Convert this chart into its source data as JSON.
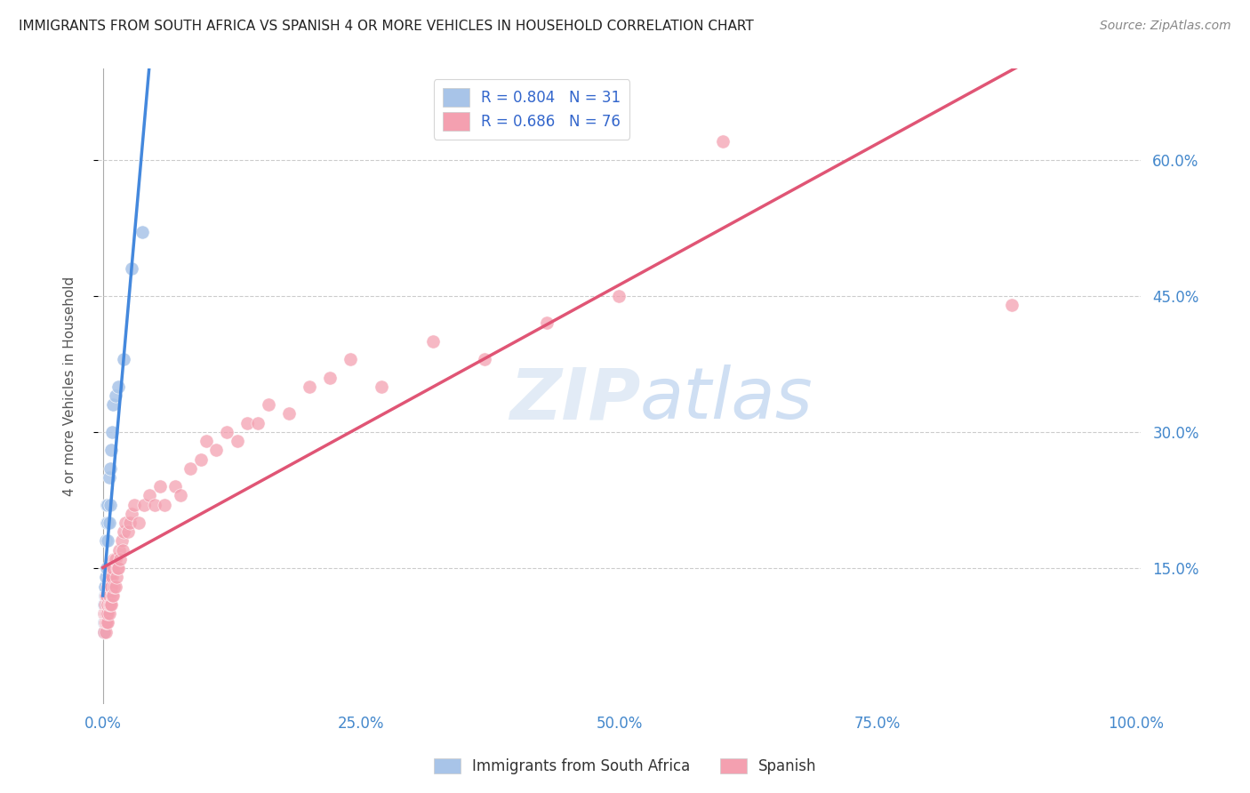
{
  "title": "IMMIGRANTS FROM SOUTH AFRICA VS SPANISH 4 OR MORE VEHICLES IN HOUSEHOLD CORRELATION CHART",
  "source": "Source: ZipAtlas.com",
  "ylabel": "4 or more Vehicles in Household",
  "ytick_labels": [
    "15.0%",
    "30.0%",
    "45.0%",
    "60.0%"
  ],
  "ytick_values": [
    0.15,
    0.3,
    0.45,
    0.6
  ],
  "watermark": "ZIPatlas",
  "legend_label1": "Immigrants from South Africa",
  "legend_label2": "Spanish",
  "R1": 0.804,
  "N1": 31,
  "R2": 0.686,
  "N2": 76,
  "color1": "#a8c4e8",
  "color2": "#f4a0b0",
  "line_color1": "#4488dd",
  "line_color2": "#e05575",
  "title_color": "#222222",
  "axis_label_color": "#4488cc",
  "legend_text_color": "#3366cc",
  "blue_x": [
    0.001,
    0.001,
    0.001,
    0.001,
    0.002,
    0.002,
    0.002,
    0.002,
    0.002,
    0.003,
    0.003,
    0.003,
    0.003,
    0.004,
    0.004,
    0.004,
    0.005,
    0.005,
    0.005,
    0.006,
    0.006,
    0.007,
    0.007,
    0.008,
    0.009,
    0.01,
    0.012,
    0.015,
    0.02,
    0.028,
    0.038
  ],
  "blue_y": [
    0.08,
    0.09,
    0.1,
    0.11,
    0.09,
    0.1,
    0.11,
    0.12,
    0.13,
    0.1,
    0.12,
    0.14,
    0.18,
    0.15,
    0.2,
    0.22,
    0.18,
    0.2,
    0.22,
    0.2,
    0.25,
    0.22,
    0.26,
    0.28,
    0.3,
    0.33,
    0.34,
    0.35,
    0.38,
    0.48,
    0.52
  ],
  "pink_x": [
    0.001,
    0.001,
    0.002,
    0.002,
    0.002,
    0.003,
    0.003,
    0.003,
    0.003,
    0.004,
    0.004,
    0.004,
    0.004,
    0.005,
    0.005,
    0.005,
    0.005,
    0.006,
    0.006,
    0.006,
    0.006,
    0.007,
    0.007,
    0.007,
    0.008,
    0.008,
    0.008,
    0.009,
    0.009,
    0.01,
    0.01,
    0.011,
    0.011,
    0.012,
    0.012,
    0.013,
    0.014,
    0.015,
    0.016,
    0.017,
    0.018,
    0.019,
    0.02,
    0.022,
    0.024,
    0.026,
    0.028,
    0.03,
    0.035,
    0.04,
    0.045,
    0.05,
    0.055,
    0.06,
    0.07,
    0.075,
    0.085,
    0.095,
    0.1,
    0.11,
    0.12,
    0.13,
    0.14,
    0.15,
    0.16,
    0.18,
    0.2,
    0.22,
    0.24,
    0.27,
    0.32,
    0.37,
    0.43,
    0.5,
    0.6,
    0.88
  ],
  "pink_y": [
    0.08,
    0.1,
    0.09,
    0.1,
    0.11,
    0.08,
    0.09,
    0.1,
    0.12,
    0.09,
    0.1,
    0.11,
    0.12,
    0.09,
    0.1,
    0.11,
    0.13,
    0.1,
    0.11,
    0.12,
    0.14,
    0.11,
    0.13,
    0.14,
    0.11,
    0.13,
    0.15,
    0.12,
    0.14,
    0.12,
    0.15,
    0.13,
    0.16,
    0.13,
    0.16,
    0.14,
    0.15,
    0.15,
    0.17,
    0.16,
    0.18,
    0.17,
    0.19,
    0.2,
    0.19,
    0.2,
    0.21,
    0.22,
    0.2,
    0.22,
    0.23,
    0.22,
    0.24,
    0.22,
    0.24,
    0.23,
    0.26,
    0.27,
    0.29,
    0.28,
    0.3,
    0.29,
    0.31,
    0.31,
    0.33,
    0.32,
    0.35,
    0.36,
    0.38,
    0.35,
    0.4,
    0.38,
    0.42,
    0.45,
    0.62,
    0.44
  ]
}
